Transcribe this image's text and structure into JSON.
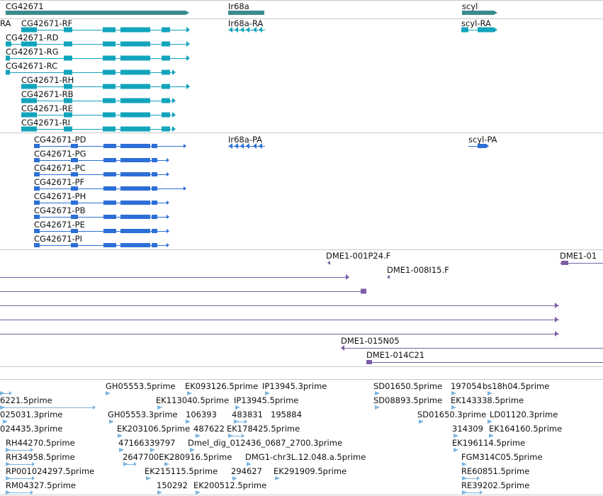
{
  "colors": {
    "gene": "#3a8c8c",
    "transcript": "#12a4bc",
    "protein": "#2d6fd6",
    "clone": "#7b5ea6",
    "est": "#79b3df",
    "divider": "#c8c8c8"
  },
  "genes": [
    {
      "id": "g1",
      "label": "CG42671"
    },
    {
      "id": "g2",
      "label": "Ir68a"
    },
    {
      "id": "g3",
      "label": "scyl"
    }
  ],
  "transcripts": [
    {
      "id": "t0",
      "label": "RA"
    },
    {
      "id": "t1",
      "label": "CG42671-RF"
    },
    {
      "id": "t2",
      "label": "Ir68a-RA"
    },
    {
      "id": "t3",
      "label": "scyl-RA"
    },
    {
      "id": "t4",
      "label": "CG42671-RD"
    },
    {
      "id": "t5",
      "label": "CG42671-RG"
    },
    {
      "id": "t6",
      "label": "CG42671-RC"
    },
    {
      "id": "t7",
      "label": "CG42671-RH"
    },
    {
      "id": "t8",
      "label": "CG42671-RB"
    },
    {
      "id": "t9",
      "label": "CG42671-RE"
    },
    {
      "id": "t10",
      "label": "CG42671-RI"
    }
  ],
  "proteins": [
    {
      "id": "p1",
      "label": "CG42671-PD"
    },
    {
      "id": "p2",
      "label": "Ir68a-PA"
    },
    {
      "id": "p3",
      "label": "scyl-PA"
    },
    {
      "id": "p4",
      "label": "CG42671-PG"
    },
    {
      "id": "p5",
      "label": "CG42671-PC"
    },
    {
      "id": "p6",
      "label": "CG42671-PF"
    },
    {
      "id": "p7",
      "label": "CG42671-PH"
    },
    {
      "id": "p8",
      "label": "CG42671-PB"
    },
    {
      "id": "p9",
      "label": "CG42671-PE"
    },
    {
      "id": "p10",
      "label": "CG42671-PI"
    }
  ],
  "clones": [
    {
      "id": "c1",
      "label": "DME1-001P24.F"
    },
    {
      "id": "c2",
      "label": "DME1-01"
    },
    {
      "id": "c3",
      "label": "DME1-008I15.F"
    },
    {
      "id": "c4",
      "label": "DME1-015N05"
    },
    {
      "id": "c5",
      "label": "DME1-014C21"
    }
  ],
  "ests": [
    {
      "id": "e1",
      "label": "GH05553.5prime"
    },
    {
      "id": "e2",
      "label": "EK093126.5prime"
    },
    {
      "id": "e3",
      "label": "IP13945.3prime"
    },
    {
      "id": "e4",
      "label": "SD01650.5prime"
    },
    {
      "id": "e5",
      "label": "197054"
    },
    {
      "id": "e6",
      "label": "bs18h04.5prime"
    },
    {
      "id": "e7",
      "label": "6221.5prime"
    },
    {
      "id": "e8",
      "label": "EK113040.5prime"
    },
    {
      "id": "e9",
      "label": "IP13945.5prime"
    },
    {
      "id": "e10",
      "label": "SD08893.5prime"
    },
    {
      "id": "e11",
      "label": "EK143338.5prime"
    },
    {
      "id": "e12",
      "label": "025031.3prime"
    },
    {
      "id": "e13",
      "label": "GH05553.3prime"
    },
    {
      "id": "e14",
      "label": "106393"
    },
    {
      "id": "e15",
      "label": "483831"
    },
    {
      "id": "e16",
      "label": "195884"
    },
    {
      "id": "e17",
      "label": "SD01650.3prime"
    },
    {
      "id": "e18",
      "label": "LD01120.3prime"
    },
    {
      "id": "e19",
      "label": "024435.3prime"
    },
    {
      "id": "e20",
      "label": "EK203106.5prime"
    },
    {
      "id": "e21",
      "label": "487622"
    },
    {
      "id": "e22",
      "label": "EK178425.5prime"
    },
    {
      "id": "e23",
      "label": "314309"
    },
    {
      "id": "e24",
      "label": "EK164160.5prime"
    },
    {
      "id": "e25",
      "label": "RH44270.5prime"
    },
    {
      "id": "e26",
      "label": "47166339797"
    },
    {
      "id": "e27",
      "label": "Dmel_dig_012436_0687_2700.3prime"
    },
    {
      "id": "e28",
      "label": "EK196114.5prime"
    },
    {
      "id": "e29",
      "label": "RH34958.5prime"
    },
    {
      "id": "e30",
      "label": "2647700EK280916.5prime"
    },
    {
      "id": "e31",
      "label": "DMG1-chr3L.12.048.a.5prime"
    },
    {
      "id": "e32",
      "label": "FGM314C05.5prime"
    },
    {
      "id": "e33",
      "label": "RP001024297.5prime"
    },
    {
      "id": "e34",
      "label": "EK215115.5prime"
    },
    {
      "id": "e35",
      "label": "294627"
    },
    {
      "id": "e36",
      "label": "EK291909.5prime"
    },
    {
      "id": "e37",
      "label": "RE60851.5prime"
    },
    {
      "id": "e38",
      "label": "RM04327.5prime"
    },
    {
      "id": "e39",
      "label": "150292"
    },
    {
      "id": "e40",
      "label": "EK200512.5prime"
    },
    {
      "id": "e41",
      "label": "RE39202.5prime"
    }
  ]
}
